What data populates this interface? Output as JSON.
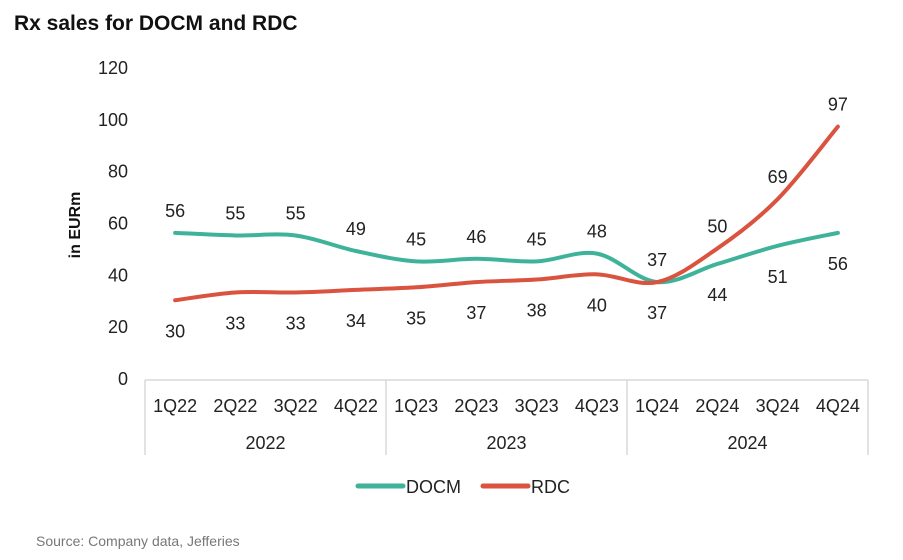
{
  "title": "Rx sales for DOCM and RDC",
  "source": "Source: Company data, Jefferies",
  "chart_data": {
    "type": "line",
    "title": "Rx sales for DOCM and RDC",
    "ylabel": "in EURm",
    "xlabel": "",
    "ylim": [
      0,
      120
    ],
    "yticks": [
      0,
      20,
      40,
      60,
      80,
      100,
      120
    ],
    "categories": [
      "1Q22",
      "2Q22",
      "3Q22",
      "4Q22",
      "1Q23",
      "2Q23",
      "3Q23",
      "4Q23",
      "1Q24",
      "2Q24",
      "3Q24",
      "4Q24"
    ],
    "groups": [
      {
        "label": "2022",
        "count": 4
      },
      {
        "label": "2023",
        "count": 4
      },
      {
        "label": "2024",
        "count": 4
      }
    ],
    "series": [
      {
        "name": "DOCM",
        "color": "#3fb39a",
        "values": [
          56,
          55,
          55,
          49,
          45,
          46,
          45,
          48,
          37,
          44,
          51,
          56
        ],
        "label_pos": [
          "above",
          "above",
          "above",
          "above",
          "above",
          "above",
          "above",
          "above",
          "above",
          "below",
          "below",
          "below"
        ]
      },
      {
        "name": "RDC",
        "color": "#d9533f",
        "values": [
          30,
          33,
          33,
          34,
          35,
          37,
          38,
          40,
          37,
          50,
          69,
          97
        ],
        "label_pos": [
          "below",
          "below",
          "below",
          "below",
          "below",
          "below",
          "below",
          "below",
          "below",
          "above",
          "above",
          "above"
        ]
      }
    ],
    "legend": "bottom-center",
    "grid": false
  }
}
